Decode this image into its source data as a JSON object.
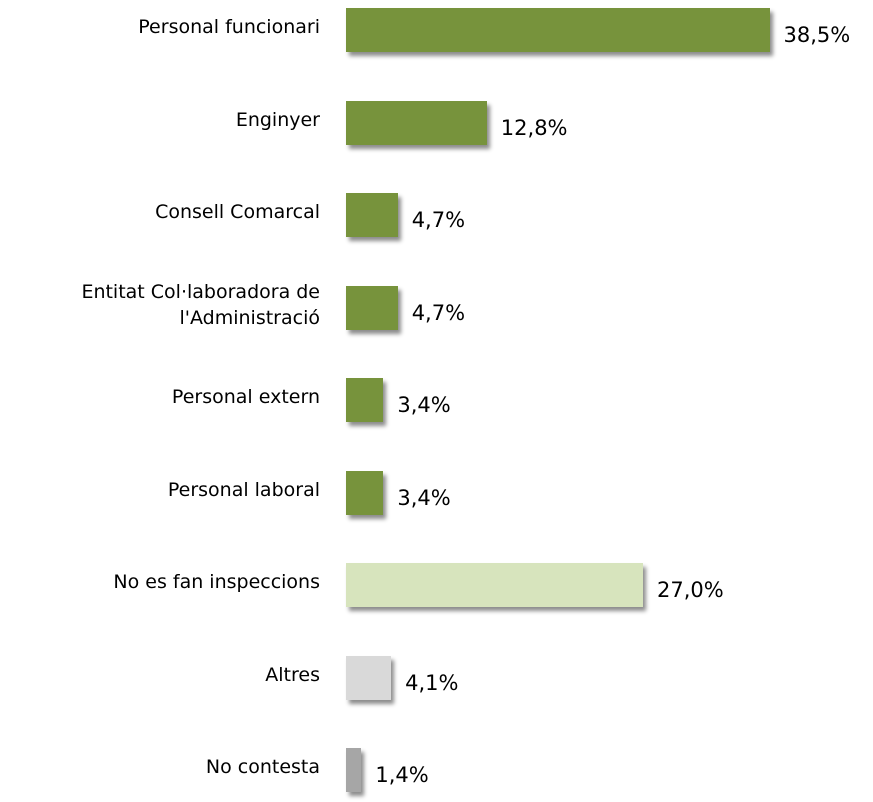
{
  "chart_data": {
    "type": "bar",
    "orientation": "horizontal",
    "categories": [
      "Personal funcionari",
      "Enginyer",
      "Consell Comarcal",
      "Entitat Col·laboradora de l'Administració",
      "Personal extern",
      "Personal laboral",
      "No es fan inspeccions",
      "Altres",
      "No contesta"
    ],
    "values": [
      38.5,
      12.8,
      4.7,
      4.7,
      3.4,
      3.4,
      27.0,
      4.1,
      1.4
    ],
    "value_labels": [
      "38,5%",
      "12,8%",
      "4,7%",
      "4,7%",
      "3,4%",
      "3,4%",
      "27,0%",
      "4,1%",
      "1,4%"
    ],
    "colors": [
      "#77933c",
      "#77933c",
      "#77933c",
      "#77933c",
      "#77933c",
      "#77933c",
      "#d7e4bd",
      "#d9d9d9",
      "#a6a6a6"
    ]
  }
}
